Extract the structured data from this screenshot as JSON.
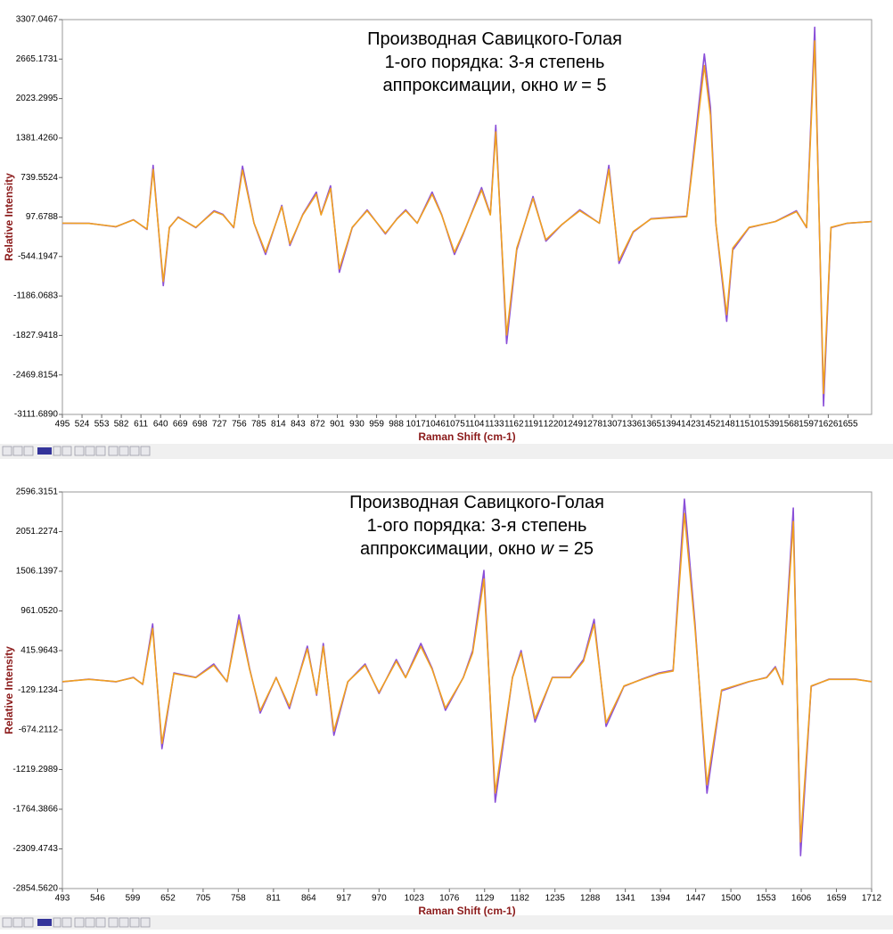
{
  "chart_data": [
    {
      "type": "line",
      "annotation": [
        [
          "Производная Савицкого-Голая"
        ],
        [
          "1-ого порядка: 3-я степень"
        ],
        [
          "аппроксимации, окно ",
          "w",
          " = 5"
        ]
      ],
      "x_label": "Raman Shift (cm-1)",
      "y_label": "Relative Intensity",
      "xlim": [
        495,
        1690
      ],
      "ylim": [
        -3111.689,
        3307.0467
      ],
      "xticks": [
        495,
        524,
        553,
        582,
        611,
        640,
        669,
        698,
        727,
        756,
        785,
        814,
        843,
        872,
        901,
        930,
        959,
        988,
        1017,
        1046,
        1075,
        1104,
        1133,
        1162,
        1191,
        1220,
        1249,
        1278,
        1307,
        1336,
        1365,
        1394,
        1423,
        1452,
        1481,
        1510,
        1539,
        1568,
        1597,
        1626,
        1655
      ],
      "yticks": [
        3307.0467,
        2665.1731,
        2023.2995,
        {
          "value": 1381.426,
          "label": "1381.4260"
        },
        739.5524,
        97.6788,
        -544.1947,
        -1186.0683,
        -1827.9418,
        -2469.8154,
        {
          "value": -3111.689,
          "label": "-3111.6890"
        }
      ],
      "x": [
        495,
        534.5,
        574,
        600,
        620,
        629,
        644,
        653,
        666,
        692,
        719,
        732,
        748,
        761,
        778,
        795,
        819,
        831,
        850,
        870,
        877,
        891,
        904,
        923,
        945,
        972,
        989,
        1002,
        1019,
        1041,
        1055,
        1074,
        1087,
        1114,
        1127,
        1135,
        1151,
        1166,
        1190,
        1209,
        1232,
        1259,
        1288,
        1302,
        1317,
        1338,
        1364,
        1417,
        1443,
        1452,
        1460,
        1476,
        1485,
        1509,
        1548,
        1579,
        1594,
        1606,
        1619,
        1630,
        1654,
        1690
      ],
      "series": [
        {
          "color": "#8a4fd8",
          "values": [
            -4,
            -4,
            -62,
            54,
            -105,
            938,
            -1018,
            -76,
            98,
            -76,
            199,
            141,
            -76,
            924,
            -4,
            -511,
            286,
            -366,
            141,
            503,
            141,
            605,
            -801,
            -76,
            214,
            -178,
            69,
            214,
            -4,
            503,
            141,
            -511,
            -178,
            576,
            141,
            1590,
            -1960,
            -438,
            431,
            -294,
            -33,
            214,
            -4,
            938,
            -656,
            -149,
            69,
            112,
            2749,
            1880,
            -4,
            -1598,
            -438,
            -76,
            25,
            199,
            -76,
            3184,
            -2974,
            -76,
            -4,
            25
          ]
        },
        {
          "color": "#f0a020",
          "values": [
            -2,
            -6,
            -58,
            50,
            -98,
            870,
            -950,
            -70,
            92,
            -70,
            186,
            132,
            -70,
            860,
            -2,
            -475,
            266,
            -340,
            132,
            468,
            132,
            562,
            -745,
            -70,
            200,
            -165,
            64,
            200,
            -2,
            468,
            132,
            -475,
            -165,
            536,
            132,
            1480,
            -1820,
            -407,
            400,
            -273,
            -30,
            200,
            -2,
            872,
            -610,
            -138,
            64,
            104,
            2560,
            1750,
            -2,
            -1490,
            -407,
            -70,
            23,
            185,
            -70,
            2960,
            -2770,
            -70,
            -2,
            23
          ]
        }
      ]
    },
    {
      "type": "line",
      "annotation": [
        [
          "Производная Савицкого-Голая"
        ],
        [
          "1-ого порядка: 3-я степень"
        ],
        [
          "аппроксимации, окно ",
          "w",
          " = 25"
        ]
      ],
      "x_label": "Raman Shift (cm-1)",
      "y_label": "Relative Intensity",
      "xlim": [
        493,
        1712
      ],
      "ylim": [
        -2854.562,
        2596.3151
      ],
      "xticks": [
        493,
        546,
        599,
        652,
        705,
        758,
        811,
        864,
        917,
        970,
        1023,
        1076,
        1129,
        1182,
        1235,
        1288,
        1341,
        1394,
        1447,
        1500,
        1553,
        1606,
        1659,
        1712
      ],
      "yticks": [
        2596.3151,
        2051.2274,
        1506.1397,
        {
          "value": 961.052,
          "label": "961.0520"
        },
        415.9643,
        -129.1234,
        -674.2112,
        -1219.2989,
        -1764.3866,
        -2309.4743,
        {
          "value": -2854.562,
          "label": "-2854.5620"
        }
      ],
      "x": [
        493,
        533,
        574,
        600,
        614,
        629,
        643,
        661,
        694,
        721,
        741,
        759,
        775,
        791,
        815,
        835,
        862,
        876,
        886,
        902,
        923,
        949,
        970,
        996,
        1010,
        1033,
        1050,
        1070,
        1097,
        1111,
        1128,
        1145,
        1171,
        1184,
        1205,
        1231,
        1258,
        1278,
        1294,
        1312,
        1339,
        1366,
        1392,
        1413,
        1430,
        1446,
        1464,
        1486,
        1527,
        1554,
        1567,
        1578,
        1594,
        1605,
        1621,
        1648,
        1688,
        1712
      ],
      "series": [
        {
          "color": "#8a4fd8",
          "values": [
            -13,
            24,
            -13,
            48,
            -50,
            783,
            -932,
            109,
            48,
            232,
            -13,
            906,
            171,
            -442,
            48,
            -381,
            477,
            -197,
            514,
            -748,
            -13,
            232,
            -173,
            293,
            48,
            514,
            171,
            -405,
            48,
            416,
            1518,
            -1667,
            48,
            416,
            -565,
            48,
            48,
            293,
            845,
            -626,
            -75,
            24,
            109,
            146,
            2498,
            783,
            -1544,
            -136,
            -13,
            48,
            195,
            -50,
            2376,
            -2402,
            -75,
            24,
            24,
            -13
          ]
        },
        {
          "color": "#f0a020",
          "values": [
            -10,
            20,
            -10,
            44,
            -46,
            720,
            -860,
            100,
            44,
            214,
            -10,
            835,
            158,
            -410,
            44,
            -352,
            440,
            -180,
            474,
            -690,
            -10,
            214,
            -160,
            270,
            44,
            474,
            158,
            -374,
            44,
            384,
            1400,
            -1540,
            44,
            384,
            -520,
            44,
            44,
            270,
            780,
            -578,
            -70,
            20,
            100,
            135,
            2300,
            722,
            -1425,
            -125,
            -10,
            44,
            180,
            -46,
            2190,
            -2215,
            -70,
            20,
            20,
            -10
          ]
        }
      ]
    }
  ]
}
